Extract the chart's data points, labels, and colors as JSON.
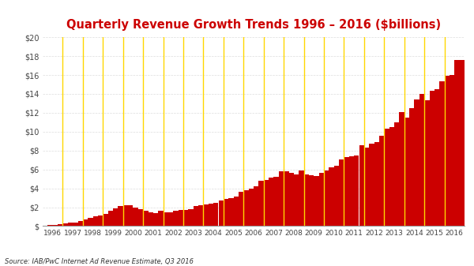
{
  "title": "Quarterly Revenue Growth Trends 1996 – 2016 ($billions)",
  "title_color": "#cc0000",
  "source_text": "Source: IAB/PwC Internet Ad Revenue Estimate, Q3 2016",
  "bar_color": "#cc0000",
  "divider_color": "#ffd700",
  "background_color": "#ffffff",
  "grid_color": "#dddddd",
  "ytick_labels": [
    "$",
    "$2",
    "$4",
    "$6",
    "$8",
    "$10",
    "$12",
    "$14",
    "$16",
    "$18",
    "$20"
  ],
  "ytick_values": [
    0,
    2,
    4,
    6,
    8,
    10,
    12,
    14,
    16,
    18,
    20
  ],
  "ylim": [
    0,
    20
  ],
  "years": [
    1996,
    1997,
    1998,
    1999,
    2000,
    2001,
    2002,
    2003,
    2004,
    2005,
    2006,
    2007,
    2008,
    2009,
    2010,
    2011,
    2012,
    2013,
    2014,
    2015,
    2016
  ],
  "quarterly_data": [
    [
      0.07,
      0.1,
      0.12,
      0.21
    ],
    [
      0.27,
      0.35,
      0.4,
      0.5
    ],
    [
      0.68,
      0.88,
      1.05,
      1.12
    ],
    [
      1.3,
      1.6,
      1.9,
      2.1
    ],
    [
      2.2,
      2.2,
      2.0,
      1.8
    ],
    [
      1.6,
      1.5,
      1.4,
      1.6
    ],
    [
      1.5,
      1.5,
      1.6,
      1.7
    ],
    [
      1.7,
      1.8,
      2.1,
      2.2
    ],
    [
      2.3,
      2.4,
      2.5,
      2.7
    ],
    [
      2.9,
      3.0,
      3.1,
      3.6
    ],
    [
      3.8,
      4.0,
      4.2,
      4.8
    ],
    [
      4.9,
      5.1,
      5.2,
      5.8
    ],
    [
      5.8,
      5.6,
      5.5,
      5.9
    ],
    [
      5.5,
      5.4,
      5.3,
      5.6
    ],
    [
      5.9,
      6.2,
      6.4,
      7.1
    ],
    [
      7.3,
      7.4,
      7.5,
      8.6
    ],
    [
      8.3,
      8.7,
      8.9,
      9.6
    ],
    [
      10.3,
      10.5,
      11.0,
      12.1
    ],
    [
      11.5,
      12.5,
      13.4,
      14.0
    ],
    [
      13.3,
      14.3,
      14.5,
      15.3
    ],
    [
      15.9,
      16.0,
      17.6,
      17.6
    ]
  ]
}
